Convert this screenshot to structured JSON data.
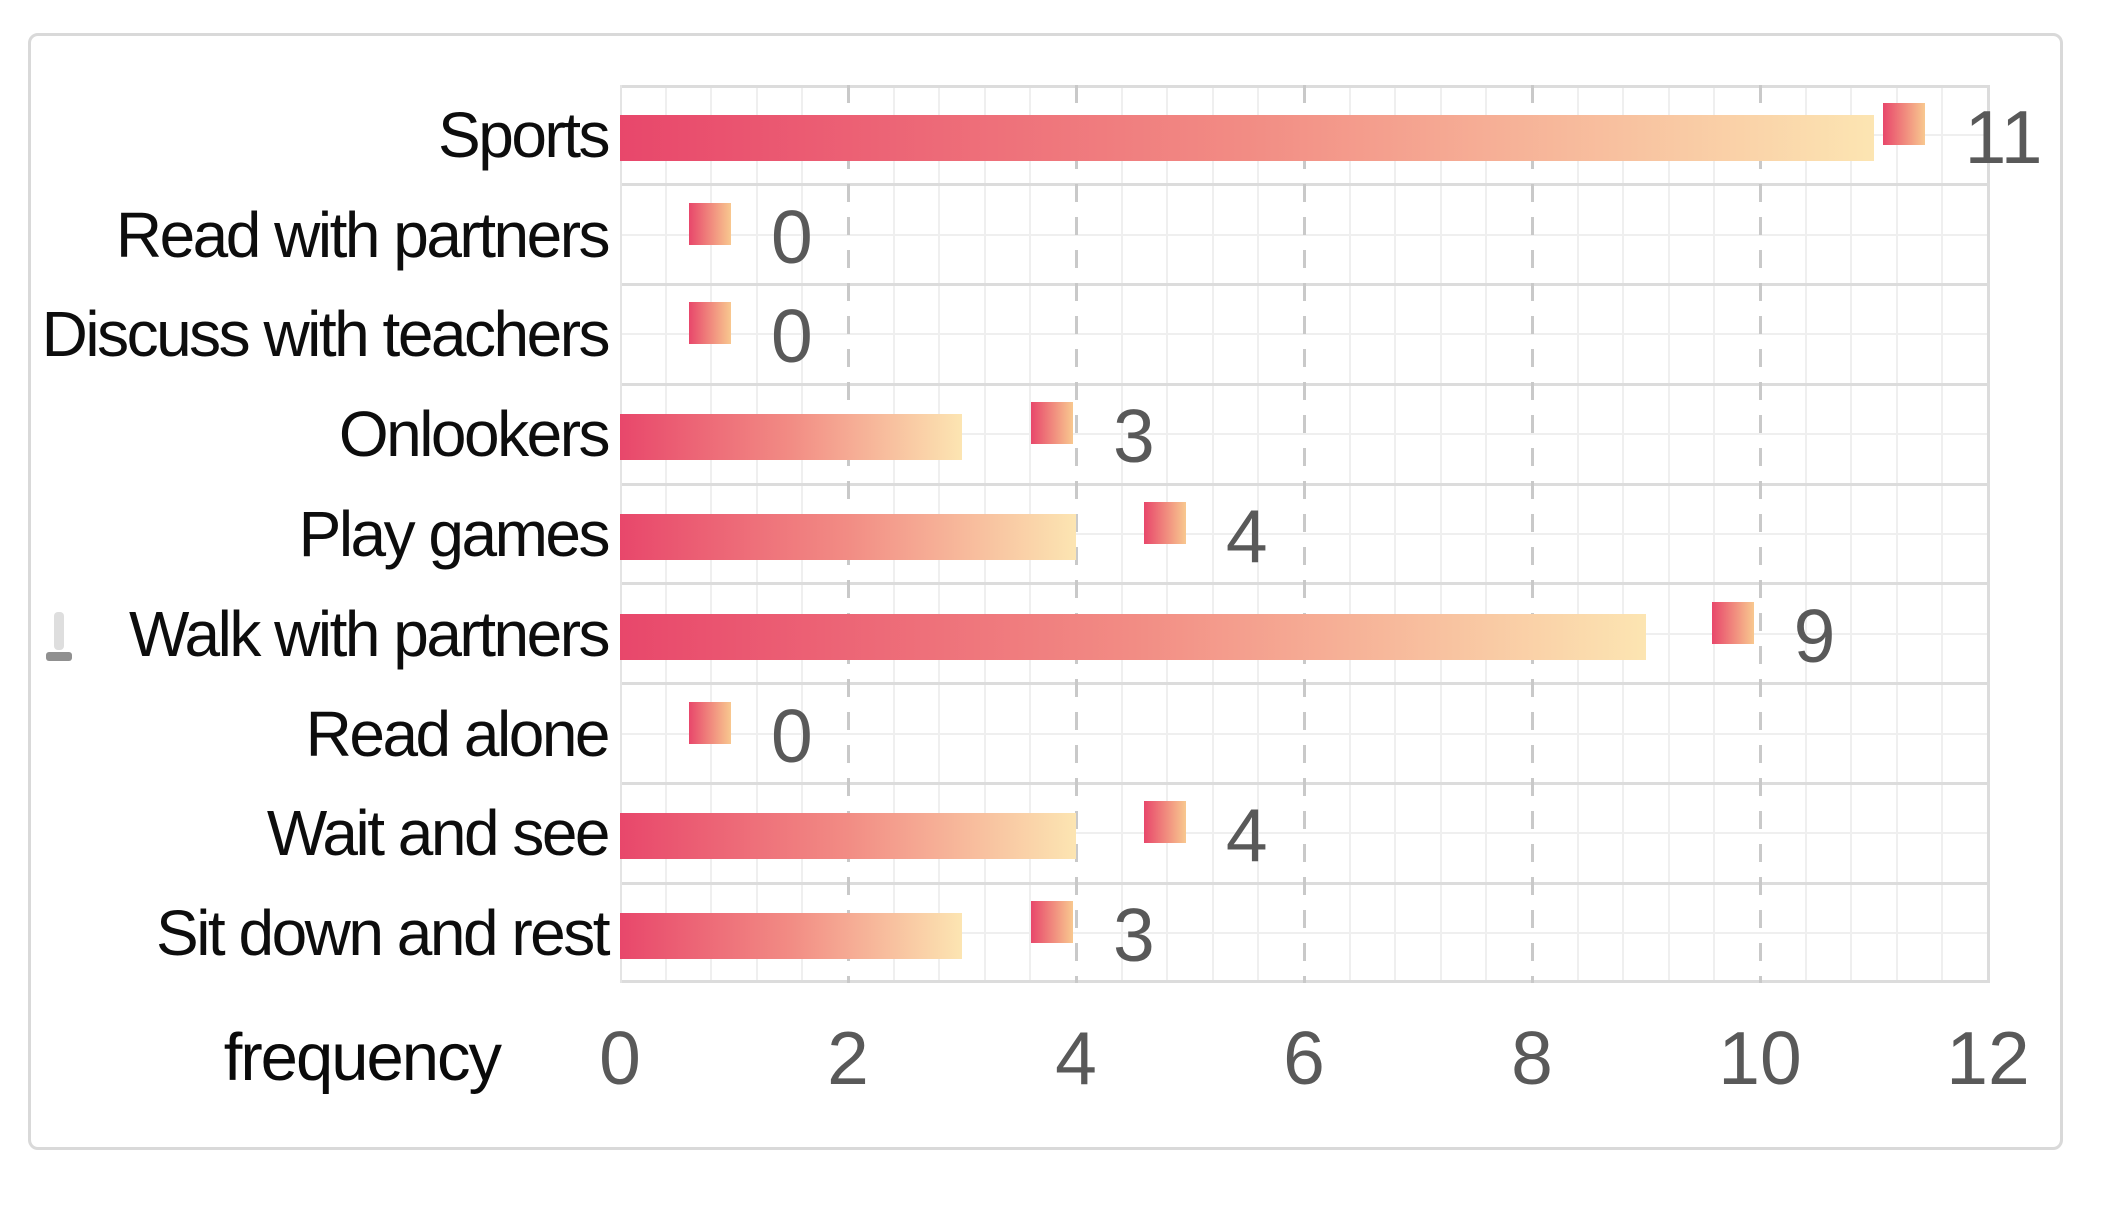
{
  "chart_data": {
    "type": "bar",
    "orientation": "horizontal",
    "title": "",
    "xlabel": "frequency",
    "ylabel": "",
    "xlim": [
      0,
      12
    ],
    "x_ticks": [
      "0",
      "2",
      "4",
      "6",
      "8",
      "10",
      "12"
    ],
    "x_tick_values": [
      0,
      2,
      4,
      6,
      8,
      10,
      12
    ],
    "x_major_gridlines": [
      2,
      4,
      6,
      8,
      10
    ],
    "x_minor_step": 0.4,
    "grid": "minor and major gridlines on, major verticals dashed",
    "legend": "none",
    "categories": [
      "Sports",
      "Read with partners",
      "Discuss with teachers",
      "Onlookers",
      "Play games",
      "Walk with partners",
      "Read alone",
      "Wait and see",
      "Sit down and rest"
    ],
    "values": [
      11,
      0,
      0,
      3,
      4,
      9,
      0,
      4,
      3
    ],
    "data_labels": [
      "11",
      "0",
      "0",
      "3",
      "4",
      "9",
      "0",
      "4",
      "3"
    ],
    "marker_positions": [
      11.26,
      0.79,
      0.79,
      3.79,
      4.78,
      9.76,
      0.79,
      4.78,
      3.79
    ]
  },
  "colors": {
    "bar_gradient_start": "#E8476B",
    "bar_gradient_mid": "#F28C84",
    "bar_gradient_end": "#FCE5B2",
    "marker_gradient_start": "#E8476B",
    "marker_gradient_end": "#F8C88F",
    "value_label": "#595959",
    "tick_label": "#595959",
    "category_label": "#0D0D0D",
    "axis_title": "#0A0A0A",
    "grid_minor": "#EFEFEF",
    "grid_major": "#DCDCDC",
    "grid_dashed": "#C9C9C9",
    "frame_border": "#D9D9D9",
    "background": "#FFFFFF"
  }
}
